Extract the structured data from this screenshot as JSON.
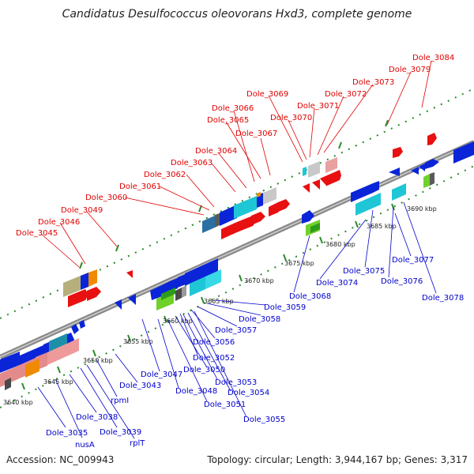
{
  "title": "Candidatus Desulfococcus oleovorans Hxd3, complete genome",
  "footer": {
    "accession": "Accession: NC_009943",
    "topology": "Topology: circular; Length: 3,944,167 bp; Genes: 3,317"
  },
  "colors": {
    "backbone": "#888888",
    "forward_label": "#e00000",
    "reverse_label": "#0000cc",
    "tick": "#2a8a2a"
  },
  "scale_labels": [
    "3640 kbp",
    "3645 kbp",
    "3650 kbp",
    "3655 kbp",
    "3660 kbp",
    "3665 kbp",
    "3670 kbp",
    "3675 kbp",
    "3680 kbp",
    "3685 kbp",
    "3690 kbp"
  ],
  "forward_genes": [
    "Dole_3045",
    "Dole_3046",
    "Dole_3049",
    "Dole_3060",
    "Dole_3061",
    "Dole_3062",
    "Dole_3063",
    "Dole_3064",
    "Dole_3067",
    "Dole_3065",
    "Dole_3066",
    "Dole_3069",
    "Dole_3070",
    "Dole_3071",
    "Dole_3072",
    "Dole_3073",
    "Dole_3079",
    "Dole_3084"
  ],
  "reverse_genes": [
    "Dole_3035",
    "nusA",
    "Dole_3038",
    "Dole_3039",
    "rplT",
    "rpmI",
    "Dole_3043",
    "Dole_3047",
    "Dole_3048",
    "Dole_3051",
    "Dole_3050",
    "Dole_3052",
    "Dole_3053",
    "Dole_3054",
    "Dole_3055",
    "Dole_3056",
    "Dole_3057",
    "Dole_3058",
    "Dole_3059",
    "Dole_3068",
    "Dole_3074",
    "Dole_3075",
    "Dole_3076",
    "Dole_3077",
    "Dole_3078"
  ]
}
